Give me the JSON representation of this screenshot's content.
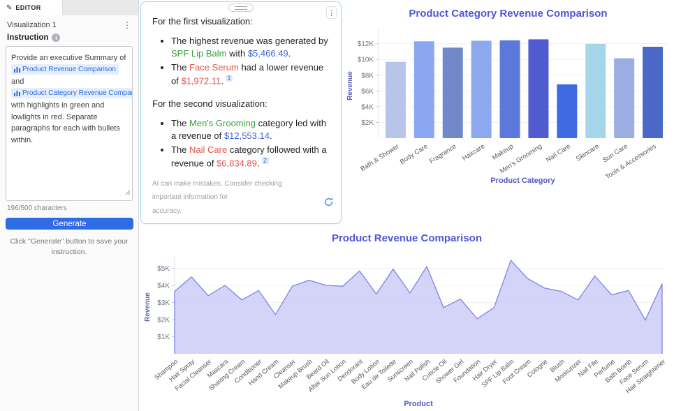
{
  "sidebar": {
    "tab_label": "EDITOR",
    "visualization_label": "Visualization 1",
    "instruction_label": "Instruction",
    "instruction_segments": [
      {
        "text": "Provide an executive Summary of "
      },
      {
        "chip": "Product Revenue Comparison"
      },
      {
        "text": " and "
      },
      {
        "chip": "Product Category Revenue Comparison"
      },
      {
        "text": " with highlights in green and lowlights in red. Separate paragraphs for each with bullets within."
      }
    ],
    "char_count": "196/500 characters",
    "generate_label": "Generate",
    "hint": "Click \"Generate\" button to save your instruction."
  },
  "text_colors": {
    "green": "#3a9e3c",
    "red": "#e4544e",
    "blue": "#3d63d9"
  },
  "summary": {
    "paragraphs": [
      {
        "intro": "For the first visualization:",
        "bullets": [
          {
            "segments": [
              {
                "t": "The highest revenue was generated by "
              },
              {
                "t": "SPF Lip Balm",
                "c": "green"
              },
              {
                "t": " with "
              },
              {
                "t": "$5,466.49",
                "c": "blue"
              },
              {
                "t": "."
              }
            ]
          },
          {
            "segments": [
              {
                "t": "The "
              },
              {
                "t": "Face Serum",
                "c": "red"
              },
              {
                "t": " had a lower revenue of "
              },
              {
                "t": "$1,972.11",
                "c": "red"
              },
              {
                "t": "."
              }
            ],
            "citation": "1"
          }
        ]
      },
      {
        "intro": "For the second visualization:",
        "bullets": [
          {
            "segments": [
              {
                "t": "The "
              },
              {
                "t": "Men's Grooming",
                "c": "green"
              },
              {
                "t": " category led with a revenue of "
              },
              {
                "t": "$12,553.14",
                "c": "blue"
              },
              {
                "t": "."
              }
            ]
          },
          {
            "segments": [
              {
                "t": "The "
              },
              {
                "t": "Nail Care",
                "c": "red"
              },
              {
                "t": " category followed with a revenue of "
              },
              {
                "t": "$6,834.89",
                "c": "red"
              },
              {
                "t": "."
              }
            ],
            "citation": "2"
          }
        ]
      }
    ],
    "disclaimer_lines": [
      "AI can make mistakes. Consider checking important information for",
      "accuracy."
    ]
  },
  "chart_data": [
    {
      "type": "bar",
      "title": "Product Category Revenue Comparison",
      "xlabel": "Product Category",
      "ylabel": "Revenue",
      "categories": [
        "Bath & Shower",
        "Body Care",
        "Fragrance",
        "Haircare",
        "Makeup",
        "Men's Grooming",
        "Nail Care",
        "Skincare",
        "Sun Care",
        "Tools & Accessories"
      ],
      "values": [
        9700,
        12300,
        11500,
        12380,
        12430,
        12553.14,
        6834.89,
        11980,
        10150,
        11620
      ],
      "bar_colors": [
        "#b8c4e8",
        "#8ba6f2",
        "#7289c9",
        "#8ca8ee",
        "#5b78da",
        "#4f5bce",
        "#3f6be2",
        "#a6d5ea",
        "#9dade2",
        "#4c68c6"
      ],
      "ticks": [
        {
          "label": "$2K",
          "value": 2000
        },
        {
          "label": "$4K",
          "value": 4000
        },
        {
          "label": "$6K",
          "value": 6000
        },
        {
          "label": "$8K",
          "value": 8000
        },
        {
          "label": "$10K",
          "value": 10000
        },
        {
          "label": "$12K",
          "value": 12000
        }
      ],
      "ylim": [
        0,
        13300
      ],
      "grid": true,
      "legend": "none"
    },
    {
      "type": "area",
      "title": "Product Revenue Comparison",
      "xlabel": "Product",
      "ylabel": "Revenue",
      "categories": [
        "Shampoo",
        "Hair Spray",
        "Facial Cleanser",
        "Mascara",
        "Shaving Cream",
        "Conditioner",
        "Hand Cream",
        "Cleanser",
        "Makeup Brush",
        "Beard Oil",
        "After Sun Lotion",
        "Deodorant",
        "Body Lotion",
        "Eau de Toilette",
        "Sunscreen",
        "Nail Polish",
        "Cuticle Oil",
        "Shower Gel",
        "Foundation",
        "Hair Dryer",
        "SPF Lip Balm",
        "Foot Cream",
        "Cologne",
        "Blush",
        "Moisturizer",
        "Nail File",
        "Perfume",
        "Bath Bomb",
        "Face Serum",
        "Hair Straightener"
      ],
      "values": [
        3650,
        4500,
        3400,
        4000,
        3150,
        3700,
        2300,
        3950,
        4300,
        4000,
        3950,
        4850,
        3500,
        4950,
        3550,
        5100,
        2700,
        3200,
        2050,
        2700,
        5466.49,
        4400,
        3850,
        3650,
        3150,
        4550,
        3450,
        3700,
        1972.11,
        4100
      ],
      "fill_color": "#cbcdf6",
      "line_color": "#7e83ea",
      "ticks": [
        {
          "label": "$1K",
          "value": 1000
        },
        {
          "label": "$2K",
          "value": 2000
        },
        {
          "label": "$3K",
          "value": 3000
        },
        {
          "label": "$4K",
          "value": 4000
        },
        {
          "label": "$5K",
          "value": 5000
        }
      ],
      "ylim": [
        0,
        6100
      ],
      "grid": true,
      "legend": "none"
    }
  ]
}
